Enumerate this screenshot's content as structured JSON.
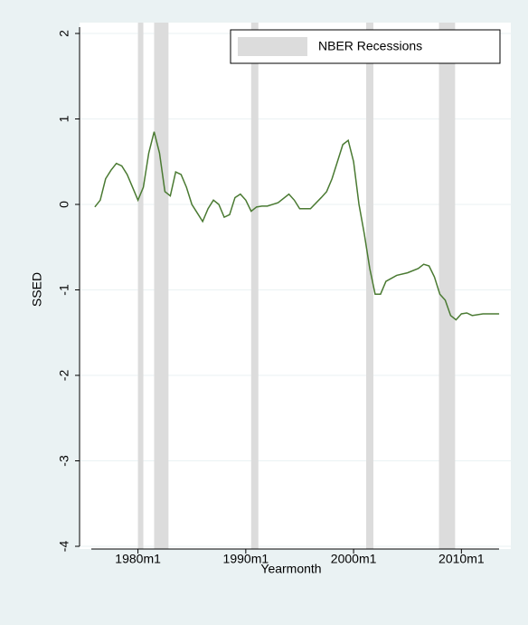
{
  "chart_data": {
    "type": "line",
    "x_label": "Yearmonth",
    "y_label": "SSED",
    "legend": "NBER Recessions",
    "legend_position": "upper right",
    "recession_color": "#dcdcdc",
    "recessions": [
      [
        "1980m1",
        "1980m7"
      ],
      [
        "1981m7",
        "1982m11"
      ],
      [
        "1990m7",
        "1991m3"
      ],
      [
        "2001m3",
        "2001m11"
      ],
      [
        "2007m12",
        "2009m6"
      ]
    ],
    "x": [
      "1976m1",
      "1976m7",
      "1977m1",
      "1977m7",
      "1978m1",
      "1978m7",
      "1979m1",
      "1979m7",
      "1980m1",
      "1980m7",
      "1981m1",
      "1981m7",
      "1982m1",
      "1982m7",
      "1983m1",
      "1983m7",
      "1984m1",
      "1984m7",
      "1985m1",
      "1985m7",
      "1986m1",
      "1986m7",
      "1987m1",
      "1987m7",
      "1988m1",
      "1988m7",
      "1989m1",
      "1989m7",
      "1990m1",
      "1990m7",
      "1991m1",
      "1991m7",
      "1992m1",
      "1993m1",
      "1994m1",
      "1994m7",
      "1995m1",
      "1996m1",
      "1997m1",
      "1997m7",
      "1998m1",
      "1998m7",
      "1999m1",
      "1999m7",
      "2000m1",
      "2000m7",
      "2001m1",
      "2001m7",
      "2002m1",
      "2002m7",
      "2003m1",
      "2004m1",
      "2005m1",
      "2006m1",
      "2006m7",
      "2007m1",
      "2007m7",
      "2008m1",
      "2008m7",
      "2009m1",
      "2009m7",
      "2010m1",
      "2010m7",
      "2011m1",
      "2012m1",
      "2013m1",
      "2013m7"
    ],
    "series": [
      {
        "color": "#4a7a32",
        "values": [
          -0.03,
          0.05,
          0.3,
          0.4,
          0.48,
          0.45,
          0.35,
          0.2,
          0.05,
          0.2,
          0.6,
          0.85,
          0.6,
          0.15,
          0.1,
          0.38,
          0.35,
          0.2,
          0.0,
          -0.1,
          -0.2,
          -0.05,
          0.05,
          0.0,
          -0.15,
          -0.12,
          0.08,
          0.12,
          0.05,
          -0.08,
          -0.03,
          -0.02,
          -0.02,
          0.02,
          0.12,
          0.05,
          -0.05,
          -0.05,
          0.08,
          0.15,
          0.3,
          0.5,
          0.7,
          0.75,
          0.5,
          0.0,
          -0.35,
          -0.75,
          -1.05,
          -1.05,
          -0.9,
          -0.83,
          -0.8,
          -0.75,
          -0.7,
          -0.72,
          -0.85,
          -1.05,
          -1.12,
          -1.3,
          -1.35,
          -1.28,
          -1.27,
          -1.3,
          -1.28,
          -1.28,
          -1.28
        ]
      }
    ],
    "xlim": [
      "1974m8",
      "2014m8"
    ],
    "xticks": [
      "1980m1",
      "1990m1",
      "2000m1",
      "2010m1"
    ],
    "ylim": [
      -4,
      2
    ],
    "yticks": [
      2,
      1,
      0,
      -1,
      -2,
      -3,
      -4
    ],
    "grid": true
  }
}
